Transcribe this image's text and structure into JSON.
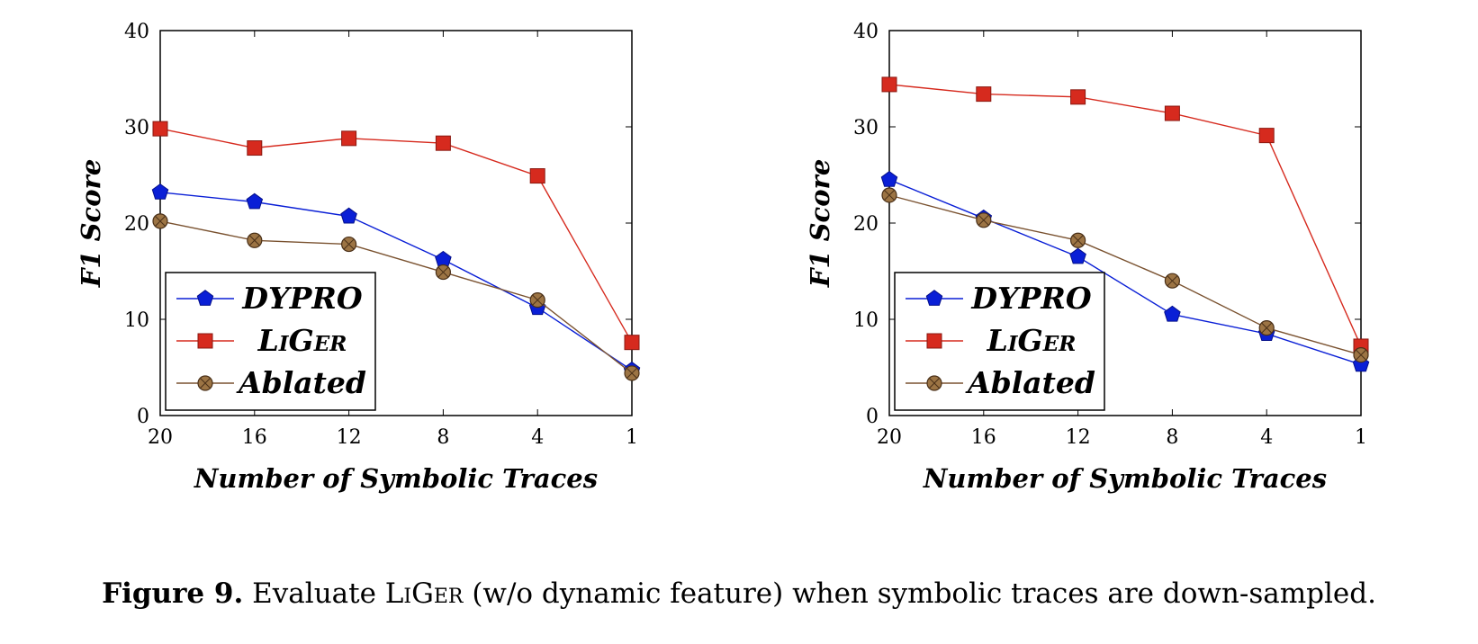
{
  "caption": {
    "label": "Figure 9.",
    "text_before": " Evaluate ",
    "system": "LiGer",
    "text_after": " (w/o dynamic feature) when symbolic traces are down-sampled."
  },
  "colors": {
    "DYPRO": "#0a1fd6",
    "LiGer": "#d62a1e",
    "Ablated": "#7a5230"
  },
  "chart_data": [
    {
      "type": "line",
      "categories": [
        "20",
        "16",
        "12",
        "8",
        "4",
        "1"
      ],
      "xlabel": "Number of Symbolic Traces",
      "ylabel": "F1 Score",
      "ylim": [
        0,
        40
      ],
      "yticks": [
        0,
        10,
        20,
        30,
        40
      ],
      "legend": "bottom-left",
      "series": [
        {
          "name": "DYPRO",
          "marker": "pentagon",
          "values": [
            23.2,
            22.2,
            20.7,
            16.2,
            11.2,
            4.7
          ]
        },
        {
          "name": "LiGer",
          "marker": "square",
          "values": [
            29.8,
            27.8,
            28.8,
            28.3,
            24.9,
            7.6
          ]
        },
        {
          "name": "Ablated",
          "marker": "circle-cross",
          "values": [
            20.2,
            18.2,
            17.8,
            14.9,
            12.0,
            4.4
          ]
        }
      ]
    },
    {
      "type": "line",
      "categories": [
        "20",
        "16",
        "12",
        "8",
        "4",
        "1"
      ],
      "xlabel": "Number of Symbolic Traces",
      "ylabel": "F1 Score",
      "ylim": [
        0,
        40
      ],
      "yticks": [
        0,
        10,
        20,
        30,
        40
      ],
      "legend": "bottom-left",
      "series": [
        {
          "name": "DYPRO",
          "marker": "pentagon",
          "values": [
            24.5,
            20.5,
            16.5,
            10.5,
            8.5,
            5.3
          ]
        },
        {
          "name": "LiGer",
          "marker": "square",
          "values": [
            34.4,
            33.4,
            33.1,
            31.4,
            29.1,
            7.2
          ]
        },
        {
          "name": "Ablated",
          "marker": "circle-cross",
          "values": [
            22.9,
            20.3,
            18.2,
            14.0,
            9.1,
            6.3
          ]
        }
      ]
    }
  ]
}
